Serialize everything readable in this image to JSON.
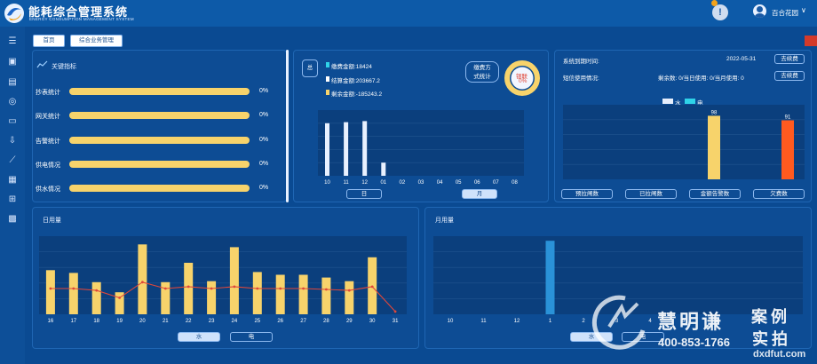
{
  "header": {
    "title": "能耗综合管理系统",
    "subtitle": "ENERGY CONSUMPTION MANAGEMENT SYSTEM",
    "alert_icon": "!",
    "user_name": "百合花园",
    "user_chevron": "∨"
  },
  "breadcrumbs": {
    "home": "首页",
    "current": "综合业务管理"
  },
  "indicators": {
    "title": "关键指标",
    "items": [
      {
        "label": "抄表统计",
        "pct": "0%"
      },
      {
        "label": "网关统计",
        "pct": "0%"
      },
      {
        "label": "告警统计",
        "pct": "0%"
      },
      {
        "label": "供电情况",
        "pct": "0%"
      },
      {
        "label": "供水情况",
        "pct": "0%"
      }
    ]
  },
  "payment": {
    "total_tag": "总",
    "lines": {
      "pay": "缴费金额:18424",
      "settle": "结算金额:203667.2",
      "remain": "剩余金额:-185243.2"
    },
    "stat_btn_line1": "缴费方",
    "stat_btn_line2": "式统计",
    "donut_label": "银联",
    "donut_pct": "0%",
    "tab_day": "日",
    "tab_month": "月"
  },
  "system": {
    "expiry_label": "系统到期时间:",
    "expiry_date": "2022-05-31",
    "renew_label": "去续费",
    "sms_label": "短信使用情况:",
    "sms_usage": "剩余数: 0/当日使用: 0/当月使用: 0",
    "legend_water": "水",
    "legend_power": "电",
    "buttons": [
      "预拉闸数",
      "已拉闸数",
      "金额告警数",
      "欠费数"
    ]
  },
  "daily": {
    "title": "日用量",
    "tab_water": "水",
    "tab_power": "电"
  },
  "monthly": {
    "title": "月用量",
    "tab_water": "水",
    "tab_power": "电"
  },
  "watermark": {
    "brand": "慧明谦",
    "tagline_1": "案例",
    "tagline_2": "实拍",
    "phone": "400-853-1766",
    "site": "dxdfut.com"
  },
  "colors": {
    "yellow": "#f7d36b",
    "blue": "#2a92d8",
    "orange": "#ff5a1f",
    "cyan": "#2fd3e8",
    "red_line": "#e0473a"
  },
  "chart_data": [
    {
      "type": "bar",
      "title": "",
      "categories": [
        "10",
        "11",
        "12",
        "01",
        "02",
        "03",
        "04",
        "05",
        "06",
        "07",
        "08"
      ],
      "series": [
        {
          "values": [
            100,
            102,
            104,
            25,
            0,
            0,
            0,
            0,
            0,
            0,
            0
          ]
        }
      ],
      "ylim": [
        0,
        125
      ],
      "grid": true
    },
    {
      "type": "bar",
      "categories": [
        ""
      ],
      "series": [
        {
          "name": "水",
          "values": [
            98
          ]
        },
        {
          "name": "电",
          "values": [
            91
          ]
        }
      ],
      "ylim": [
        0,
        115
      ],
      "grid": true,
      "legend": "top"
    },
    {
      "type": "bar",
      "title": "日用量",
      "categories": [
        "16",
        "17",
        "18",
        "19",
        "20",
        "21",
        "22",
        "23",
        "24",
        "25",
        "26",
        "27",
        "28",
        "29",
        "30",
        "31"
      ],
      "series": [
        {
          "type": "bar",
          "values": [
            48,
            45,
            35,
            24,
            76,
            35,
            56,
            36,
            73,
            46,
            43,
            43,
            40,
            36,
            62,
            0
          ]
        },
        {
          "type": "line",
          "values": [
            28,
            28,
            26,
            18,
            35,
            28,
            30,
            28,
            30,
            28,
            28,
            28,
            27,
            26,
            30,
            3
          ]
        }
      ],
      "ylim": [
        0,
        85
      ],
      "grid": true
    },
    {
      "type": "bar",
      "title": "月用量",
      "categories": [
        "10",
        "11",
        "12",
        "1",
        "2",
        "3",
        "4",
        "5",
        "6"
      ],
      "series": [
        {
          "values": [
            0,
            0,
            0,
            80,
            0,
            0,
            0,
            0,
            0
          ]
        }
      ],
      "ylim": [
        0,
        85
      ],
      "grid": true
    }
  ]
}
